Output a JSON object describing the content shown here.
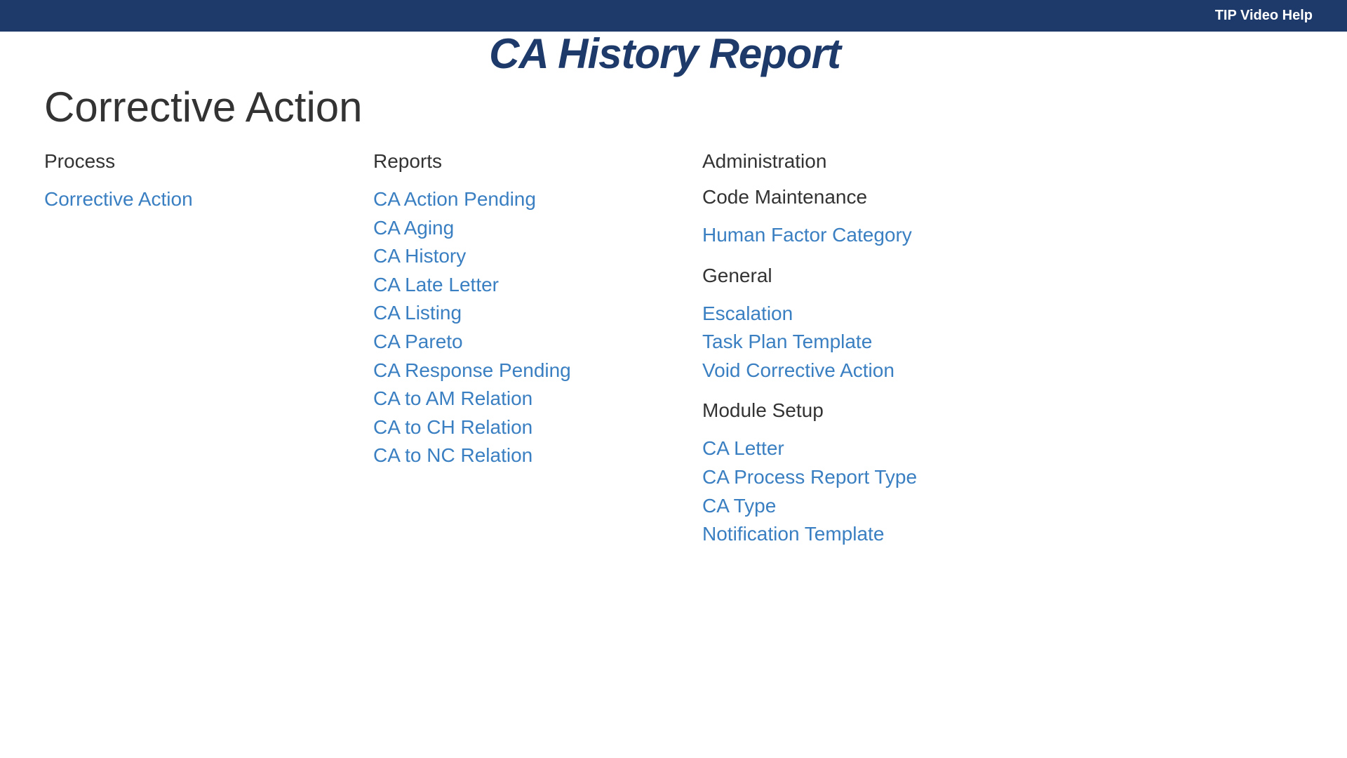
{
  "topbar": {
    "help_label": "TIP Video Help"
  },
  "title": "CA History Report",
  "heading": "Corrective Action",
  "process": {
    "title": "Process",
    "links": [
      "Corrective Action"
    ]
  },
  "reports": {
    "title": "Reports",
    "links": [
      "CA Action Pending",
      "CA Aging",
      "CA History",
      "CA Late Letter",
      "CA Listing",
      "CA Pareto",
      "CA Response Pending",
      "CA to AM Relation",
      "CA to CH Relation",
      "CA to NC Relation"
    ]
  },
  "administration": {
    "title": "Administration",
    "groups": [
      {
        "title": "Code Maintenance",
        "links": [
          "Human Factor Category"
        ]
      },
      {
        "title": "General",
        "links": [
          "Escalation",
          "Task Plan Template",
          "Void Corrective Action"
        ]
      },
      {
        "title": "Module Setup",
        "links": [
          "CA Letter",
          "CA Process Report Type",
          "CA Type",
          "Notification Template"
        ]
      }
    ]
  },
  "colors": {
    "topbar": "#1e3a6b",
    "link": "#3a7fc1",
    "text": "#333333"
  }
}
